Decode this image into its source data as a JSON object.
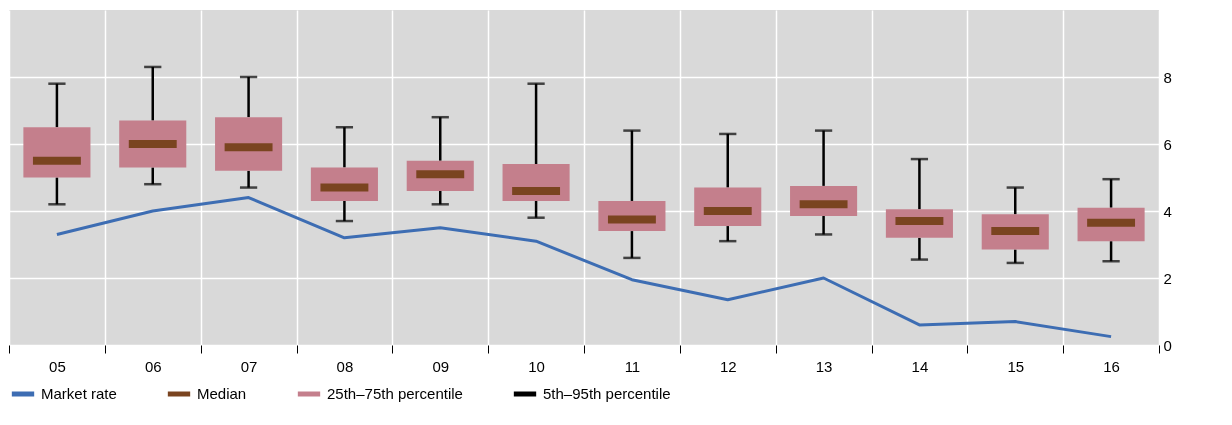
{
  "chart_data": {
    "type": "box",
    "categories": [
      "05",
      "06",
      "07",
      "08",
      "09",
      "10",
      "11",
      "12",
      "13",
      "14",
      "15",
      "16"
    ],
    "series": [
      {
        "name": "Market rate",
        "type": "line",
        "color": "#3d6db3",
        "values": [
          3.3,
          4.0,
          4.4,
          3.2,
          3.5,
          3.1,
          1.95,
          1.35,
          2.0,
          0.6,
          0.7,
          0.25
        ]
      },
      {
        "name": "25th–75th percentile",
        "color": "#c47f8c",
        "boxes": [
          {
            "low": 4.2,
            "q1": 5.0,
            "median": 5.5,
            "q3": 6.5,
            "high": 7.8
          },
          {
            "low": 4.8,
            "q1": 5.3,
            "median": 6.0,
            "q3": 6.7,
            "high": 8.3
          },
          {
            "low": 4.7,
            "q1": 5.2,
            "median": 5.9,
            "q3": 6.8,
            "high": 8.0
          },
          {
            "low": 3.7,
            "q1": 4.3,
            "median": 4.7,
            "q3": 5.3,
            "high": 6.5
          },
          {
            "low": 4.2,
            "q1": 4.6,
            "median": 5.1,
            "q3": 5.5,
            "high": 6.8
          },
          {
            "low": 3.8,
            "q1": 4.3,
            "median": 4.6,
            "q3": 5.4,
            "high": 7.8
          },
          {
            "low": 2.6,
            "q1": 3.4,
            "median": 3.75,
            "q3": 4.3,
            "high": 6.4
          },
          {
            "low": 3.1,
            "q1": 3.55,
            "median": 4.0,
            "q3": 4.7,
            "high": 6.3
          },
          {
            "low": 3.3,
            "q1": 3.85,
            "median": 4.2,
            "q3": 4.75,
            "high": 6.4
          },
          {
            "low": 2.55,
            "q1": 3.2,
            "median": 3.7,
            "q3": 4.05,
            "high": 5.55
          },
          {
            "low": 2.45,
            "q1": 2.85,
            "median": 3.4,
            "q3": 3.9,
            "high": 4.7
          },
          {
            "low": 2.5,
            "q1": 3.1,
            "median": 3.65,
            "q3": 4.1,
            "high": 4.95
          }
        ]
      }
    ],
    "annotations": [
      "Median",
      "5th–95th percentile"
    ],
    "ylim": [
      0,
      10
    ],
    "yticks": [
      0,
      2,
      4,
      6,
      8
    ],
    "grid": true,
    "legend": "bottom"
  }
}
